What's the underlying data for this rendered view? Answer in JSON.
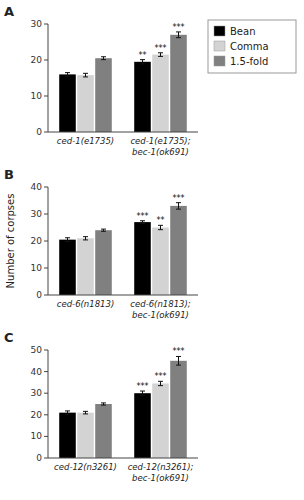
{
  "chart_data": [
    {
      "type": "bar",
      "title": "A",
      "categories": [
        "ced-1(e1735)",
        "ced-1(e1735);\nbec-1(ok691)"
      ],
      "series": [
        {
          "name": "Bean",
          "color": "#000000",
          "values": [
            16.0,
            19.5
          ],
          "errors": [
            0.5,
            0.6
          ],
          "annotations": [
            null,
            "**"
          ]
        },
        {
          "name": "Comma",
          "color": "#d3d3d3",
          "values": [
            15.8,
            21.5
          ],
          "errors": [
            0.5,
            0.5
          ],
          "annotations": [
            null,
            "***"
          ]
        },
        {
          "name": "1.5-fold",
          "color": "#808080",
          "values": [
            20.5,
            27.0
          ],
          "errors": [
            0.4,
            0.8
          ],
          "annotations": [
            null,
            "***"
          ]
        }
      ],
      "ylim": [
        0,
        30
      ],
      "yticks": [
        0,
        10,
        20,
        30
      ],
      "legend": "right"
    },
    {
      "type": "bar",
      "title": "B",
      "y_label": "Number of corpses",
      "categories": [
        "ced-6(n1813)",
        "ced-6(n1813);\nbec-1(ok691)"
      ],
      "series": [
        {
          "color": "#000000",
          "values": [
            20.5,
            27.0
          ],
          "errors": [
            0.7,
            0.5
          ],
          "annotations": [
            null,
            "***"
          ]
        },
        {
          "color": "#d3d3d3",
          "values": [
            21.0,
            25.0
          ],
          "errors": [
            0.6,
            0.8
          ],
          "annotations": [
            null,
            "**"
          ]
        },
        {
          "color": "#808080",
          "values": [
            24.0,
            33.0
          ],
          "errors": [
            0.4,
            1.2
          ],
          "annotations": [
            null,
            "***"
          ]
        }
      ],
      "ylim": [
        0,
        40
      ],
      "yticks": [
        0,
        10,
        20,
        30,
        40
      ]
    },
    {
      "type": "bar",
      "title": "C",
      "categories": [
        "ced-12(n3261)",
        "ced-12(n3261);\nbec-1(ok691)"
      ],
      "series": [
        {
          "color": "#000000",
          "values": [
            21.0,
            30.0
          ],
          "errors": [
            0.8,
            1.0
          ],
          "annotations": [
            null,
            "***"
          ]
        },
        {
          "color": "#d3d3d3",
          "values": [
            21.0,
            34.5
          ],
          "errors": [
            0.6,
            1.0
          ],
          "annotations": [
            null,
            "***"
          ]
        },
        {
          "color": "#808080",
          "values": [
            25.0,
            45.0
          ],
          "errors": [
            0.5,
            2.0
          ],
          "annotations": [
            null,
            "***"
          ]
        }
      ],
      "ylim": [
        0,
        50
      ],
      "yticks": [
        0,
        10,
        20,
        30,
        40,
        50
      ]
    }
  ]
}
